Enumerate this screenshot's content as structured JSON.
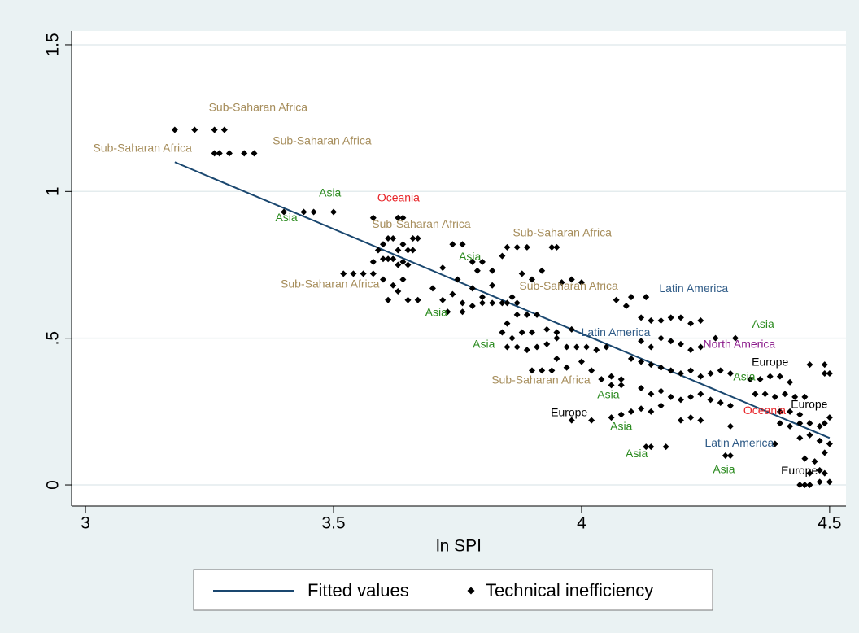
{
  "chart_data": {
    "type": "scatter",
    "x_label": "ln SPI",
    "xlim": [
      2.972,
      4.533
    ],
    "ylim": [
      -0.072,
      1.547
    ],
    "xticks": [
      3,
      3.5,
      4,
      4.5
    ],
    "yticks": [
      0,
      {
        "value": 0.5,
        "label": ".5"
      },
      1,
      1.5
    ],
    "grid": true,
    "legend": "bottom",
    "series": [
      {
        "name": "Fitted values",
        "type": "line",
        "color": "#1a476f",
        "x": [
          3.18,
          4.5
        ],
        "values": [
          1.1,
          0.16
        ]
      },
      {
        "name": "Technical inefficiency",
        "type": "scatter",
        "color": "#000000",
        "x": [
          3.18,
          3.22,
          3.26,
          3.28,
          3.26,
          3.27,
          3.29,
          3.32,
          3.34,
          3.4,
          3.44,
          3.46,
          3.5,
          3.58,
          3.63,
          3.64,
          3.52,
          3.54,
          3.56,
          3.58,
          3.59,
          3.6,
          3.61,
          3.62,
          3.63,
          3.64,
          3.65,
          3.66,
          3.67,
          3.58,
          3.6,
          3.61,
          3.62,
          3.63,
          3.64,
          3.65,
          3.66,
          3.6,
          3.62,
          3.64,
          3.63,
          3.65,
          3.67,
          3.61,
          3.74,
          3.76,
          3.72,
          3.75,
          3.78,
          3.79,
          3.8,
          3.82,
          3.84,
          3.85,
          3.87,
          3.89,
          3.94,
          3.95,
          3.7,
          3.72,
          3.74,
          3.76,
          3.78,
          3.8,
          3.82,
          3.84,
          3.86,
          3.88,
          3.9,
          3.92,
          3.73,
          3.76,
          3.78,
          3.8,
          3.82,
          3.85,
          3.87,
          3.85,
          3.87,
          3.89,
          3.91,
          3.84,
          3.86,
          3.88,
          3.9,
          3.85,
          3.87,
          3.89,
          3.91,
          3.93,
          3.95,
          3.97,
          3.99,
          4.01,
          4.03,
          4.05,
          3.96,
          3.98,
          4.0,
          3.93,
          3.95,
          3.98,
          3.95,
          3.97,
          4.0,
          4.02,
          3.9,
          3.92,
          3.94,
          4.04,
          4.06,
          4.08,
          4.06,
          4.08,
          4.07,
          4.09,
          4.1,
          4.13,
          4.12,
          4.14,
          4.16,
          4.18,
          4.2,
          4.22,
          4.24,
          4.12,
          4.14,
          4.16,
          4.18,
          4.2,
          4.22,
          4.24,
          4.27,
          4.31,
          4.1,
          4.12,
          4.14,
          4.16,
          4.18,
          4.2,
          4.22,
          4.24,
          4.26,
          4.28,
          4.3,
          4.12,
          4.14,
          4.16,
          4.18,
          4.2,
          4.22,
          4.24,
          4.26,
          4.28,
          4.3,
          4.1,
          4.12,
          4.14,
          4.16,
          4.2,
          4.22,
          4.24,
          4.3,
          4.06,
          4.08,
          3.98,
          4.02,
          4.13,
          4.14,
          4.17,
          4.29,
          4.3,
          4.39,
          4.34,
          4.36,
          4.38,
          4.4,
          4.42,
          4.35,
          4.37,
          4.39,
          4.41,
          4.43,
          4.45,
          4.4,
          4.42,
          4.44,
          4.46,
          4.49,
          4.49,
          4.5,
          4.4,
          4.42,
          4.44,
          4.46,
          4.48,
          4.5,
          4.49,
          4.44,
          4.46,
          4.48,
          4.5,
          4.45,
          4.47,
          4.49,
          4.46,
          4.48,
          4.49,
          4.44,
          4.45,
          4.46,
          4.48,
          4.5
        ],
        "values": [
          1.21,
          1.21,
          1.21,
          1.21,
          1.13,
          1.13,
          1.13,
          1.13,
          1.13,
          0.93,
          0.93,
          0.93,
          0.93,
          0.91,
          0.91,
          0.91,
          0.72,
          0.72,
          0.72,
          0.72,
          0.8,
          0.82,
          0.84,
          0.84,
          0.8,
          0.82,
          0.8,
          0.84,
          0.84,
          0.76,
          0.77,
          0.77,
          0.77,
          0.75,
          0.76,
          0.75,
          0.8,
          0.7,
          0.68,
          0.7,
          0.66,
          0.63,
          0.63,
          0.63,
          0.82,
          0.82,
          0.74,
          0.7,
          0.76,
          0.73,
          0.76,
          0.73,
          0.78,
          0.81,
          0.81,
          0.81,
          0.81,
          0.81,
          0.67,
          0.63,
          0.65,
          0.62,
          0.67,
          0.64,
          0.68,
          0.62,
          0.64,
          0.72,
          0.7,
          0.73,
          0.59,
          0.59,
          0.61,
          0.62,
          0.62,
          0.62,
          0.62,
          0.55,
          0.58,
          0.58,
          0.58,
          0.52,
          0.5,
          0.52,
          0.52,
          0.47,
          0.47,
          0.46,
          0.47,
          0.48,
          0.5,
          0.47,
          0.47,
          0.47,
          0.46,
          0.47,
          0.69,
          0.7,
          0.69,
          0.53,
          0.52,
          0.53,
          0.43,
          0.4,
          0.42,
          0.39,
          0.39,
          0.39,
          0.39,
          0.36,
          0.37,
          0.36,
          0.34,
          0.34,
          0.63,
          0.61,
          0.64,
          0.64,
          0.57,
          0.56,
          0.56,
          0.57,
          0.57,
          0.55,
          0.56,
          0.49,
          0.47,
          0.5,
          0.49,
          0.48,
          0.46,
          0.47,
          0.5,
          0.5,
          0.43,
          0.42,
          0.41,
          0.4,
          0.39,
          0.38,
          0.39,
          0.37,
          0.38,
          0.39,
          0.38,
          0.33,
          0.31,
          0.32,
          0.3,
          0.29,
          0.3,
          0.31,
          0.29,
          0.28,
          0.27,
          0.25,
          0.26,
          0.25,
          0.27,
          0.22,
          0.23,
          0.22,
          0.2,
          0.23,
          0.24,
          0.22,
          0.22,
          0.13,
          0.13,
          0.13,
          0.1,
          0.1,
          0.14,
          0.36,
          0.36,
          0.37,
          0.37,
          0.35,
          0.31,
          0.31,
          0.3,
          0.31,
          0.3,
          0.3,
          0.25,
          0.25,
          0.24,
          0.41,
          0.41,
          0.38,
          0.38,
          0.21,
          0.2,
          0.21,
          0.21,
          0.2,
          0.23,
          0.21,
          0.16,
          0.17,
          0.15,
          0.14,
          0.09,
          0.08,
          0.11,
          0.04,
          0.05,
          0.04,
          0.0,
          0.0,
          0.0,
          0.01,
          0.01
        ]
      }
    ],
    "annotations": [
      {
        "text": "Sub-Saharan Africa",
        "x": 3.348,
        "y": 1.284,
        "color": "#a68d5b"
      },
      {
        "text": "Sub-Saharan Africa",
        "x": 3.115,
        "y": 1.145,
        "color": "#a68d5b"
      },
      {
        "text": "Sub-Saharan Africa",
        "x": 3.477,
        "y": 1.17,
        "color": "#a68d5b"
      },
      {
        "text": "Asia",
        "x": 3.493,
        "y": 0.993,
        "color": "#2a8a1e"
      },
      {
        "text": "Asia",
        "x": 3.405,
        "y": 0.909,
        "color": "#2a8a1e"
      },
      {
        "text": "Oceania",
        "x": 3.631,
        "y": 0.976,
        "color": "#e8262a"
      },
      {
        "text": "Sub-Saharan Africa",
        "x": 3.677,
        "y": 0.887,
        "color": "#a68d5b"
      },
      {
        "text": "Sub-Saharan Africa",
        "x": 3.961,
        "y": 0.857,
        "color": "#a68d5b"
      },
      {
        "text": "Asia",
        "x": 3.775,
        "y": 0.776,
        "color": "#2a8a1e"
      },
      {
        "text": "Sub-Saharan Africa",
        "x": 3.493,
        "y": 0.682,
        "color": "#a68d5b"
      },
      {
        "text": "Sub-Saharan Africa",
        "x": 3.974,
        "y": 0.676,
        "color": "#a68d5b"
      },
      {
        "text": "Latin America",
        "x": 4.226,
        "y": 0.668,
        "color": "#2f5b87"
      },
      {
        "text": "Asia",
        "x": 3.707,
        "y": 0.585,
        "color": "#2a8a1e"
      },
      {
        "text": "Asia",
        "x": 4.366,
        "y": 0.546,
        "color": "#2a8a1e"
      },
      {
        "text": "Latin America",
        "x": 4.069,
        "y": 0.518,
        "color": "#2f5b87"
      },
      {
        "text": "North America",
        "x": 4.318,
        "y": 0.477,
        "color": "#8b1a8b"
      },
      {
        "text": "Asia",
        "x": 3.803,
        "y": 0.477,
        "color": "#2a8a1e"
      },
      {
        "text": "Europe",
        "x": 4.38,
        "y": 0.416,
        "color": "#000000"
      },
      {
        "text": "Sub-Saharan Africa",
        "x": 3.918,
        "y": 0.355,
        "color": "#a68d5b"
      },
      {
        "text": "Asia",
        "x": 4.328,
        "y": 0.366,
        "color": "#2a8a1e"
      },
      {
        "text": "Asia",
        "x": 4.054,
        "y": 0.305,
        "color": "#2a8a1e"
      },
      {
        "text": "Europe",
        "x": 4.459,
        "y": 0.272,
        "color": "#000000"
      },
      {
        "text": "Oceania",
        "x": 4.369,
        "y": 0.252,
        "color": "#e8262a"
      },
      {
        "text": "Europe",
        "x": 3.975,
        "y": 0.244,
        "color": "#000000"
      },
      {
        "text": "Asia",
        "x": 4.08,
        "y": 0.197,
        "color": "#2a8a1e"
      },
      {
        "text": "Latin America",
        "x": 4.318,
        "y": 0.141,
        "color": "#2f5b87"
      },
      {
        "text": "Asia",
        "x": 4.111,
        "y": 0.105,
        "color": "#2a8a1e"
      },
      {
        "text": "Asia",
        "x": 4.287,
        "y": 0.05,
        "color": "#2a8a1e"
      },
      {
        "text": "Europe",
        "x": 4.439,
        "y": 0.047,
        "color": "#000000"
      }
    ]
  }
}
